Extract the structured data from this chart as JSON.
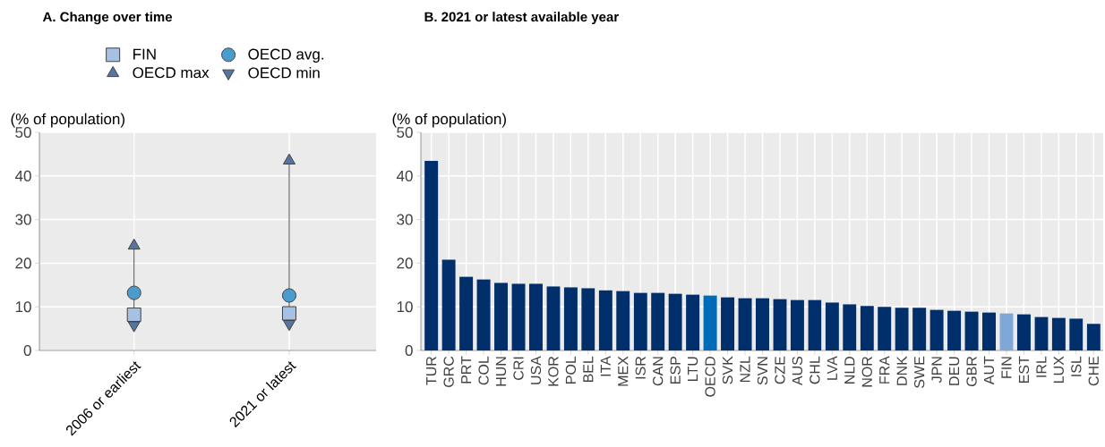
{
  "chart_data": [
    {
      "type": "scatter",
      "title": "A. Change over time",
      "ylabel": "(% of population)",
      "categories": [
        "2006 or earliest",
        "2021 or latest"
      ],
      "ylim": [
        0,
        50
      ],
      "yticks": [
        0,
        10,
        20,
        30,
        40,
        50
      ],
      "grid": true,
      "legend": "top",
      "series": [
        {
          "name": "FIN",
          "color": "#a6c1e3",
          "marker": "square",
          "values": [
            8.2,
            8.5
          ]
        },
        {
          "name": "OECD avg.",
          "color": "#4a9ccf",
          "marker": "circle",
          "values": [
            13.2,
            12.6
          ]
        },
        {
          "name": "OECD max",
          "color": "#5574a0",
          "marker": "triangle",
          "values": [
            24.0,
            43.5
          ]
        },
        {
          "name": "OECD min",
          "color": "#5574a0",
          "marker": "triangle-down",
          "values": [
            5.8,
            6.1
          ]
        }
      ]
    },
    {
      "type": "bar",
      "title": "B. 2021 or latest available year",
      "ylabel": "(% of population)",
      "ylim": [
        0,
        50
      ],
      "yticks": [
        0,
        10,
        20,
        30,
        40,
        50
      ],
      "grid": true,
      "categories": [
        "TUR",
        "GRC",
        "PRT",
        "COL",
        "HUN",
        "CRI",
        "USA",
        "KOR",
        "POL",
        "BEL",
        "ITA",
        "MEX",
        "ISR",
        "CAN",
        "ESP",
        "LTU",
        "OECD",
        "SVK",
        "NZL",
        "SVN",
        "CZE",
        "AUS",
        "CHL",
        "LVA",
        "NLD",
        "NOR",
        "FRA",
        "DNK",
        "SWE",
        "JPN",
        "DEU",
        "GBR",
        "AUT",
        "FIN",
        "EST",
        "IRL",
        "LUX",
        "ISL",
        "CHE"
      ],
      "values": [
        43.5,
        20.8,
        16.9,
        16.3,
        15.5,
        15.3,
        15.3,
        14.7,
        14.5,
        14.3,
        13.8,
        13.6,
        13.2,
        13.2,
        13.0,
        12.8,
        12.6,
        12.2,
        12.0,
        12.0,
        11.8,
        11.6,
        11.6,
        11.0,
        10.6,
        10.2,
        10.0,
        9.8,
        9.8,
        9.3,
        9.1,
        8.9,
        8.7,
        8.5,
        8.3,
        7.7,
        7.5,
        7.3,
        6.1
      ],
      "colors": [
        "#002f6c",
        "#002f6c",
        "#002f6c",
        "#002f6c",
        "#002f6c",
        "#002f6c",
        "#002f6c",
        "#002f6c",
        "#002f6c",
        "#002f6c",
        "#002f6c",
        "#002f6c",
        "#002f6c",
        "#002f6c",
        "#002f6c",
        "#002f6c",
        "#006bb6",
        "#002f6c",
        "#002f6c",
        "#002f6c",
        "#002f6c",
        "#002f6c",
        "#002f6c",
        "#002f6c",
        "#002f6c",
        "#002f6c",
        "#002f6c",
        "#002f6c",
        "#002f6c",
        "#002f6c",
        "#002f6c",
        "#002f6c",
        "#002f6c",
        "#7fa8d8",
        "#002f6c",
        "#002f6c",
        "#002f6c",
        "#002f6c",
        "#002f6c"
      ]
    }
  ]
}
